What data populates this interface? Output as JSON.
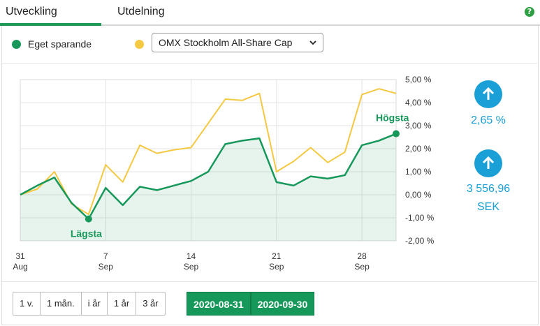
{
  "tabs": [
    {
      "label": "Utveckling",
      "active": true
    },
    {
      "label": "Utdelning",
      "active": false
    }
  ],
  "help_icon": "?",
  "legend": {
    "own": {
      "label": "Eget sparande",
      "color": "#16985a"
    },
    "index": {
      "label": "OMX Stockholm All-Share Cap",
      "color": "#f5c842"
    }
  },
  "chart_data": {
    "type": "line",
    "x_ticks": [
      {
        "day": "31",
        "month": "Aug",
        "index": 0
      },
      {
        "day": "7",
        "month": "Sep",
        "index": 5
      },
      {
        "day": "14",
        "month": "Sep",
        "index": 10
      },
      {
        "day": "21",
        "month": "Sep",
        "index": 15
      },
      {
        "day": "28",
        "month": "Sep",
        "index": 20
      }
    ],
    "ylim": [
      -2,
      5
    ],
    "y_tick_labels": [
      "5,00 %",
      "4,00 %",
      "3,00 %",
      "2,00 %",
      "1,00 %",
      "0,00 %",
      "-1,00 %",
      "-2,00 %"
    ],
    "series": [
      {
        "name": "Eget sparande",
        "color": "#16985a",
        "values": [
          0.0,
          0.4,
          0.75,
          -0.35,
          -1.05,
          0.3,
          -0.45,
          0.35,
          0.2,
          0.4,
          0.6,
          1.0,
          2.2,
          2.35,
          2.45,
          0.55,
          0.4,
          0.8,
          0.7,
          0.85,
          2.15,
          2.35,
          2.65
        ]
      },
      {
        "name": "OMX Stockholm All-Share Cap",
        "color": "#f5c842",
        "values": [
          0.0,
          0.25,
          1.0,
          -0.4,
          -0.85,
          1.3,
          0.55,
          2.15,
          1.8,
          1.95,
          2.05,
          3.1,
          4.15,
          4.1,
          4.4,
          1.0,
          1.45,
          2.05,
          1.4,
          1.85,
          4.35,
          4.6,
          4.4
        ]
      }
    ],
    "annotations": {
      "high": {
        "label": "Högsta",
        "index": 22
      },
      "low": {
        "label": "Lägsta",
        "index": 4
      }
    },
    "grid": true
  },
  "kpi": {
    "percent": "2,65 %",
    "amount_line1": "3 556,96",
    "amount_line2": "SEK"
  },
  "period_buttons": [
    "1 v.",
    "1 mån.",
    "i år",
    "1 år",
    "3 år"
  ],
  "date_range": {
    "from": "2020-08-31",
    "to": "2020-09-30"
  }
}
